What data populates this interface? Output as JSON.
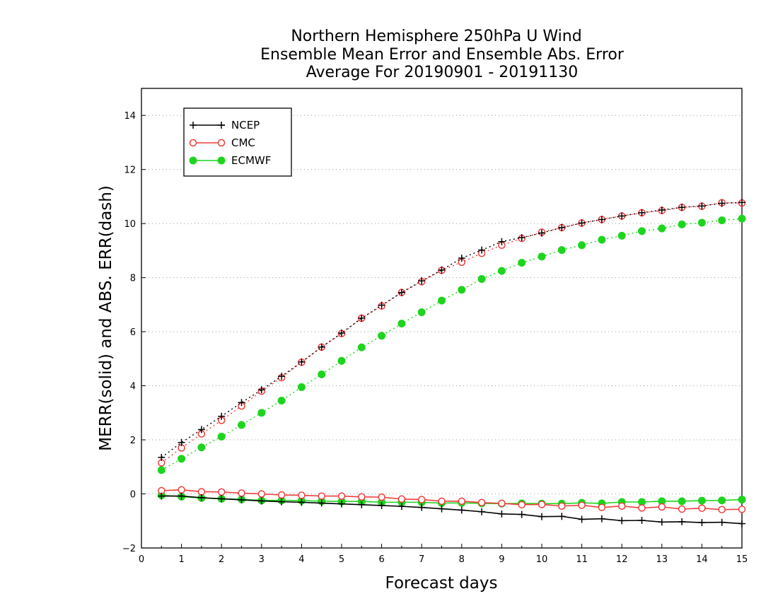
{
  "chart_data": {
    "type": "line",
    "title": [
      "Northern Hemisphere 250hPa U Wind",
      "Ensemble Mean Error and Ensemble Abs. Error",
      "Average For 20190901 - 20191130"
    ],
    "xlabel": "Forecast days",
    "ylabel": "MERR(solid) and ABS. ERR(dash)",
    "xlim": [
      0,
      15
    ],
    "ylim": [
      -2,
      15
    ],
    "xticks": [
      "0",
      "1",
      "2",
      "3",
      "4",
      "5",
      "6",
      "7",
      "8",
      "9",
      "10",
      "11",
      "12",
      "13",
      "14",
      "15"
    ],
    "yticks": [
      "−2",
      "0",
      "2",
      "4",
      "6",
      "8",
      "10",
      "12",
      "14"
    ],
    "grid": "horizontal dotted",
    "legend_position": "top-left",
    "x": [
      0.5,
      1,
      1.5,
      2,
      2.5,
      3,
      3.5,
      4,
      4.5,
      5,
      5.5,
      6,
      6.5,
      7,
      7.5,
      8,
      8.5,
      9,
      9.5,
      10,
      10.5,
      11,
      11.5,
      12,
      12.5,
      13,
      13.5,
      14,
      14.5,
      15
    ],
    "series": [
      {
        "name": "NCEP",
        "color": "#000000",
        "marker": "plus",
        "abs_err": [
          1.35,
          1.9,
          2.38,
          2.87,
          3.38,
          3.85,
          4.35,
          4.88,
          5.43,
          5.95,
          6.5,
          6.98,
          7.45,
          7.88,
          8.28,
          8.72,
          9.02,
          9.33,
          9.48,
          9.65,
          9.85,
          10.02,
          10.15,
          10.28,
          10.4,
          10.5,
          10.6,
          10.65,
          10.75,
          10.78
        ],
        "mean_err": [
          -0.08,
          -0.08,
          -0.14,
          -0.18,
          -0.22,
          -0.26,
          -0.29,
          -0.31,
          -0.34,
          -0.37,
          -0.4,
          -0.43,
          -0.46,
          -0.5,
          -0.55,
          -0.6,
          -0.66,
          -0.74,
          -0.76,
          -0.84,
          -0.83,
          -0.94,
          -0.92,
          -0.99,
          -0.98,
          -1.04,
          -1.03,
          -1.06,
          -1.05,
          -1.1
        ]
      },
      {
        "name": "CMC",
        "color": "#f03c3c",
        "marker": "open-circle",
        "abs_err": [
          1.15,
          1.7,
          2.22,
          2.72,
          3.25,
          3.8,
          4.3,
          4.87,
          5.43,
          5.93,
          6.5,
          6.95,
          7.45,
          7.85,
          8.27,
          8.57,
          8.9,
          9.2,
          9.45,
          9.68,
          9.85,
          10.02,
          10.15,
          10.28,
          10.4,
          10.48,
          10.6,
          10.64,
          10.77,
          10.76
        ],
        "mean_err": [
          0.12,
          0.15,
          0.08,
          0.07,
          0.03,
          0.0,
          -0.04,
          -0.05,
          -0.08,
          -0.08,
          -0.11,
          -0.12,
          -0.19,
          -0.21,
          -0.27,
          -0.27,
          -0.32,
          -0.35,
          -0.4,
          -0.39,
          -0.45,
          -0.42,
          -0.5,
          -0.45,
          -0.52,
          -0.48,
          -0.56,
          -0.53,
          -0.58,
          -0.57
        ]
      },
      {
        "name": "ECMWF",
        "color": "#1ed41e",
        "marker": "filled-circle",
        "abs_err": [
          0.88,
          1.3,
          1.72,
          2.12,
          2.55,
          3.0,
          3.45,
          3.95,
          4.42,
          4.92,
          5.42,
          5.85,
          6.3,
          6.72,
          7.15,
          7.55,
          7.95,
          8.25,
          8.55,
          8.78,
          9.02,
          9.2,
          9.4,
          9.55,
          9.72,
          9.82,
          9.97,
          10.03,
          10.12,
          10.18
        ],
        "mean_err": [
          -0.05,
          -0.1,
          -0.15,
          -0.18,
          -0.2,
          -0.24,
          -0.24,
          -0.25,
          -0.27,
          -0.28,
          -0.28,
          -0.31,
          -0.31,
          -0.31,
          -0.34,
          -0.33,
          -0.35,
          -0.36,
          -0.35,
          -0.36,
          -0.36,
          -0.33,
          -0.35,
          -0.3,
          -0.3,
          -0.27,
          -0.27,
          -0.25,
          -0.24,
          -0.21
        ]
      }
    ]
  }
}
